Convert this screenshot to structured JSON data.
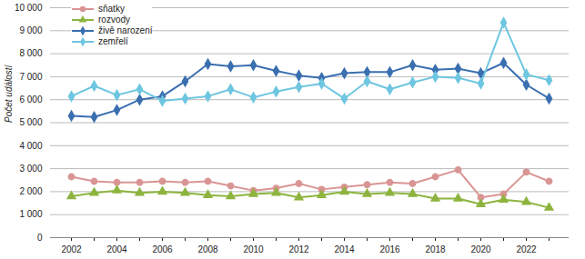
{
  "chart_data": {
    "type": "line",
    "y_label": "Počet událostí",
    "categories": [
      "2002",
      null,
      "2004",
      null,
      "2006",
      null,
      "2008",
      null,
      "2010",
      null,
      "2012",
      null,
      "2014",
      null,
      "2016",
      null,
      "2018",
      null,
      "2020",
      null,
      "2022",
      null
    ],
    "series": [
      {
        "name": "sňatky",
        "color": "#d99594",
        "marker": "circle",
        "values": [
          2650,
          2450,
          2400,
          2400,
          2450,
          2400,
          2450,
          2250,
          2050,
          2150,
          2350,
          2100,
          2200,
          2300,
          2400,
          2350,
          2650,
          2950,
          1750,
          1900,
          2850,
          2450
        ]
      },
      {
        "name": "rozvody",
        "color": "#8db43e",
        "marker": "triangle",
        "values": [
          1800,
          1950,
          2050,
          1950,
          2000,
          1950,
          1850,
          1800,
          1900,
          1950,
          1750,
          1850,
          2000,
          1900,
          1950,
          1900,
          1700,
          1700,
          1450,
          1650,
          1550,
          1300
        ]
      },
      {
        "name": "živě narození",
        "color": "#3a6fb0",
        "marker": "diamond",
        "values": [
          5300,
          5250,
          5550,
          6000,
          6150,
          6800,
          7550,
          7450,
          7500,
          7250,
          7050,
          6950,
          7150,
          7200,
          7200,
          7500,
          7300,
          7350,
          7150,
          7600,
          6650,
          6050
        ]
      },
      {
        "name": "zemřelí",
        "color": "#6ec6e0",
        "marker": "diamond",
        "values": [
          6150,
          6600,
          6200,
          6450,
          5950,
          6050,
          6150,
          6450,
          6100,
          6350,
          6550,
          6700,
          6050,
          6800,
          6450,
          6750,
          7000,
          6950,
          6700,
          9350,
          7100,
          6850
        ]
      }
    ],
    "ylim": [
      0,
      10000
    ],
    "yticks": [
      0,
      {
        "value": 1000,
        "label": "1 000"
      },
      {
        "value": 2000,
        "label": "2 000"
      },
      {
        "value": 3000,
        "label": "3 000"
      },
      {
        "value": 4000,
        "label": "4 000"
      },
      {
        "value": 5000,
        "label": "5 000"
      },
      {
        "value": 6000,
        "label": "6 000"
      },
      {
        "value": 7000,
        "label": "7 000"
      },
      {
        "value": 8000,
        "label": "8 000"
      },
      {
        "value": 9000,
        "label": "9 000"
      },
      {
        "value": 10000,
        "label": "10 000"
      }
    ],
    "grid": true,
    "legend": "top-left"
  }
}
